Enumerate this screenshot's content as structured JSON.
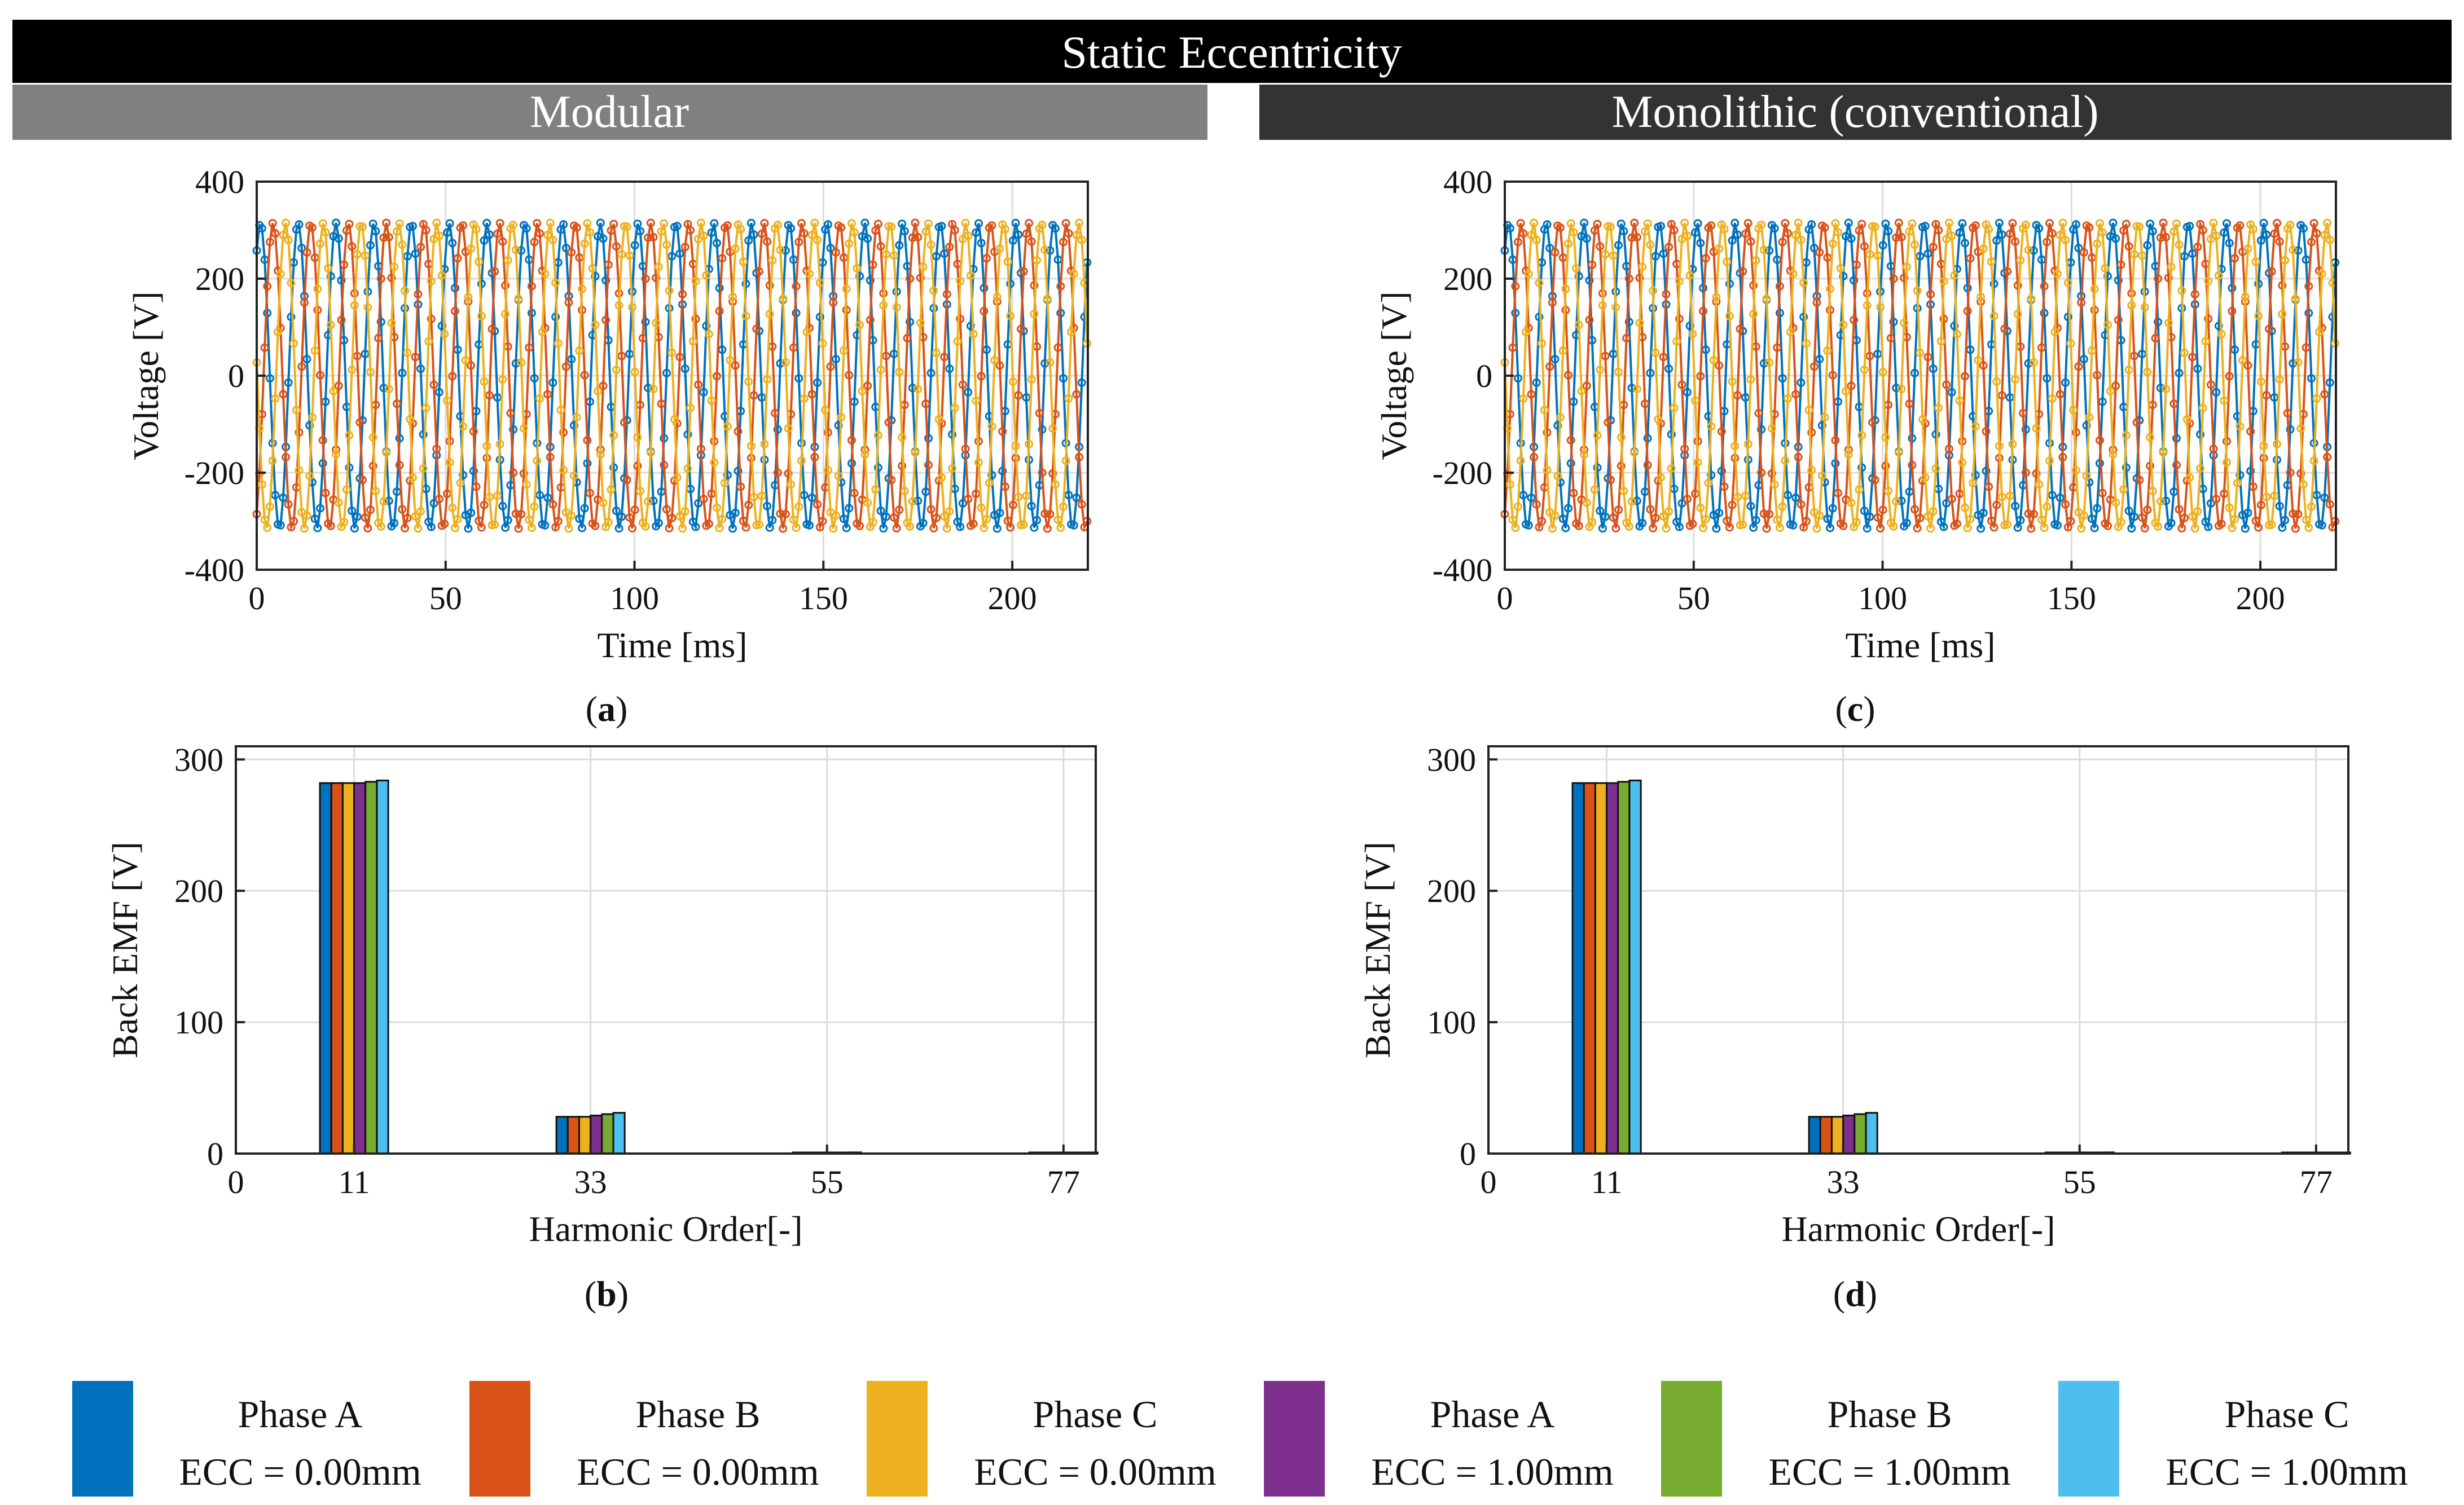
{
  "figure_title": "Static Eccentricity",
  "panel_headers": {
    "modular": "Modular",
    "monolithic": "Monolithic (conventional)"
  },
  "colors": {
    "banner_bg": "#000000",
    "modular_header_bg": "#808080",
    "monolithic_header_bg": "#333333",
    "grid": "#dcdcdc",
    "phase_a_0": "#0072BD",
    "phase_b_0": "#D95319",
    "phase_c_0": "#EDB120",
    "phase_a_1": "#7E2F8E",
    "phase_b_1": "#77AC30",
    "phase_c_1": "#4DBEEE"
  },
  "captions": {
    "a": {
      "open": "(",
      "letter": "a",
      "close": ")"
    },
    "b": {
      "open": "(",
      "letter": "b",
      "close": ")"
    },
    "c": {
      "open": "(",
      "letter": "c",
      "close": ")"
    },
    "d": {
      "open": "(",
      "letter": "d",
      "close": ")"
    }
  },
  "legend": [
    {
      "line1": "Phase A",
      "line2": "ECC = 0.00mm",
      "color": "#0072BD"
    },
    {
      "line1": "Phase B",
      "line2": "ECC = 0.00mm",
      "color": "#D95319"
    },
    {
      "line1": "Phase C",
      "line2": "ECC = 0.00mm",
      "color": "#EDB120"
    },
    {
      "line1": "Phase A",
      "line2": "ECC = 1.00mm",
      "color": "#7E2F8E"
    },
    {
      "line1": "Phase B",
      "line2": "ECC = 1.00mm",
      "color": "#77AC30"
    },
    {
      "line1": "Phase C",
      "line2": "ECC = 1.00mm",
      "color": "#4DBEEE"
    }
  ],
  "chart_data": [
    {
      "id": "a",
      "type": "line",
      "title": "",
      "xlabel": "Time [ms]",
      "ylabel": "Voltage [V]",
      "xlim": [
        0,
        220
      ],
      "ylim": [
        -400,
        400
      ],
      "xticks": [
        0,
        50,
        100,
        150,
        200
      ],
      "yticks": [
        -400,
        -200,
        0,
        200,
        400
      ],
      "grid": true,
      "marker": "circle",
      "waveform": {
        "amplitude": 315,
        "frequency_hz": 100,
        "duration_ms": 220,
        "sample_step_ms": 0.7
      },
      "series": [
        {
          "name": "Phase A",
          "phase_deg": 55,
          "color": "#0072BD"
        },
        {
          "name": "Phase B",
          "phase_deg": -65,
          "color": "#D95319"
        },
        {
          "name": "Phase C",
          "phase_deg": 175,
          "color": "#EDB120"
        }
      ]
    },
    {
      "id": "b",
      "type": "bar",
      "title": "",
      "xlabel": "Harmonic Order[-]",
      "ylabel": "Back EMF [V]",
      "xlim": [
        0,
        80
      ],
      "ylim": [
        0,
        310
      ],
      "xticks": [
        0,
        11,
        33,
        55,
        77
      ],
      "yticks": [
        0,
        100,
        200,
        300
      ],
      "grid": true,
      "categories": [
        11,
        33,
        55,
        77
      ],
      "series": [
        {
          "name": "Phase A ECC = 0.00mm",
          "color": "#0072BD",
          "values": [
            282,
            28,
            0.6,
            0.2
          ]
        },
        {
          "name": "Phase B ECC = 0.00mm",
          "color": "#D95319",
          "values": [
            282,
            28,
            0.6,
            0.2
          ]
        },
        {
          "name": "Phase C ECC = 0.00mm",
          "color": "#EDB120",
          "values": [
            282,
            28,
            0.6,
            0.2
          ]
        },
        {
          "name": "Phase A ECC = 1.00mm",
          "color": "#7E2F8E",
          "values": [
            282,
            29,
            0.8,
            0.3
          ]
        },
        {
          "name": "Phase B ECC = 1.00mm",
          "color": "#77AC30",
          "values": [
            283,
            30,
            0.8,
            0.3
          ]
        },
        {
          "name": "Phase C ECC = 1.00mm",
          "color": "#4DBEEE",
          "values": [
            284,
            31,
            0.9,
            0.3
          ]
        }
      ]
    },
    {
      "id": "c",
      "type": "line",
      "title": "",
      "xlabel": "Time [ms]",
      "ylabel": "Voltage [V]",
      "xlim": [
        0,
        220
      ],
      "ylim": [
        -400,
        400
      ],
      "xticks": [
        0,
        50,
        100,
        150,
        200
      ],
      "yticks": [
        -400,
        -200,
        0,
        200,
        400
      ],
      "grid": true,
      "marker": "circle",
      "waveform": {
        "amplitude": 315,
        "frequency_hz": 100,
        "duration_ms": 220,
        "sample_step_ms": 0.7
      },
      "series": [
        {
          "name": "Phase A",
          "phase_deg": 55,
          "color": "#0072BD"
        },
        {
          "name": "Phase B",
          "phase_deg": -65,
          "color": "#D95319"
        },
        {
          "name": "Phase C",
          "phase_deg": 175,
          "color": "#EDB120"
        }
      ]
    },
    {
      "id": "d",
      "type": "bar",
      "title": "",
      "xlabel": "Harmonic Order[-]",
      "ylabel": "Back EMF [V]",
      "xlim": [
        0,
        80
      ],
      "ylim": [
        0,
        310
      ],
      "xticks": [
        0,
        11,
        33,
        55,
        77
      ],
      "yticks": [
        0,
        100,
        200,
        300
      ],
      "grid": true,
      "categories": [
        11,
        33,
        55,
        77
      ],
      "series": [
        {
          "name": "Phase A ECC = 0.00mm",
          "color": "#0072BD",
          "values": [
            282,
            28,
            0.6,
            0.3
          ]
        },
        {
          "name": "Phase B ECC = 0.00mm",
          "color": "#D95319",
          "values": [
            282,
            28,
            0.6,
            0.3
          ]
        },
        {
          "name": "Phase C ECC = 0.00mm",
          "color": "#EDB120",
          "values": [
            282,
            28,
            0.6,
            0.3
          ]
        },
        {
          "name": "Phase A ECC = 1.00mm",
          "color": "#7E2F8E",
          "values": [
            282,
            29,
            0.8,
            0.5
          ]
        },
        {
          "name": "Phase B ECC = 1.00mm",
          "color": "#77AC30",
          "values": [
            283,
            30,
            0.8,
            0.6
          ]
        },
        {
          "name": "Phase C ECC = 1.00mm",
          "color": "#4DBEEE",
          "values": [
            284,
            31,
            0.9,
            0.7
          ]
        }
      ]
    }
  ]
}
